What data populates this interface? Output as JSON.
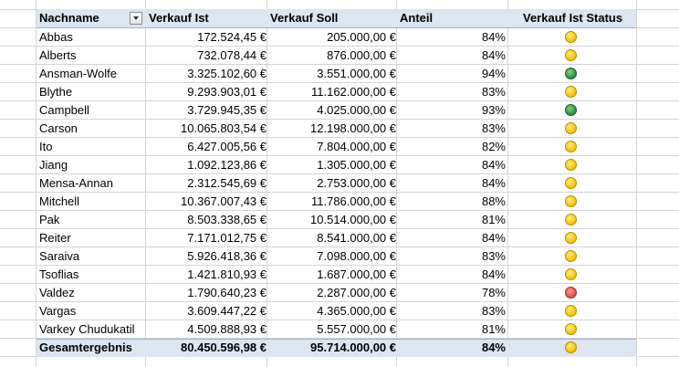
{
  "header": {
    "name": "Nachname",
    "ist": "Verkauf Ist",
    "soll": "Verkauf Soll",
    "anteil": "Anteil",
    "status": "Verkauf Ist Status"
  },
  "rows": [
    {
      "name": "Abbas",
      "ist": "172.524,45 €",
      "soll": "205.000,00 €",
      "anteil": "84%",
      "status": "yellow"
    },
    {
      "name": "Alberts",
      "ist": "732.078,44 €",
      "soll": "876.000,00 €",
      "anteil": "84%",
      "status": "yellow"
    },
    {
      "name": "Ansman-Wolfe",
      "ist": "3.325.102,60 €",
      "soll": "3.551.000,00 €",
      "anteil": "94%",
      "status": "green"
    },
    {
      "name": "Blythe",
      "ist": "9.293.903,01 €",
      "soll": "11.162.000,00 €",
      "anteil": "83%",
      "status": "yellow"
    },
    {
      "name": "Campbell",
      "ist": "3.729.945,35 €",
      "soll": "4.025.000,00 €",
      "anteil": "93%",
      "status": "green"
    },
    {
      "name": "Carson",
      "ist": "10.065.803,54 €",
      "soll": "12.198.000,00 €",
      "anteil": "83%",
      "status": "yellow"
    },
    {
      "name": "Ito",
      "ist": "6.427.005,56 €",
      "soll": "7.804.000,00 €",
      "anteil": "82%",
      "status": "yellow"
    },
    {
      "name": "Jiang",
      "ist": "1.092.123,86 €",
      "soll": "1.305.000,00 €",
      "anteil": "84%",
      "status": "yellow"
    },
    {
      "name": "Mensa-Annan",
      "ist": "2.312.545,69 €",
      "soll": "2.753.000,00 €",
      "anteil": "84%",
      "status": "yellow"
    },
    {
      "name": "Mitchell",
      "ist": "10.367.007,43 €",
      "soll": "11.786.000,00 €",
      "anteil": "88%",
      "status": "yellow"
    },
    {
      "name": "Pak",
      "ist": "8.503.338,65 €",
      "soll": "10.514.000,00 €",
      "anteil": "81%",
      "status": "yellow"
    },
    {
      "name": "Reiter",
      "ist": "7.171.012,75 €",
      "soll": "8.541.000,00 €",
      "anteil": "84%",
      "status": "yellow"
    },
    {
      "name": "Saraiva",
      "ist": "5.926.418,36 €",
      "soll": "7.098.000,00 €",
      "anteil": "83%",
      "status": "yellow"
    },
    {
      "name": "Tsoflias",
      "ist": "1.421.810,93 €",
      "soll": "1.687.000,00 €",
      "anteil": "84%",
      "status": "yellow"
    },
    {
      "name": "Valdez",
      "ist": "1.790.640,23 €",
      "soll": "2.287.000,00 €",
      "anteil": "78%",
      "status": "red"
    },
    {
      "name": "Vargas",
      "ist": "3.609.447,22 €",
      "soll": "4.365.000,00 €",
      "anteil": "83%",
      "status": "yellow"
    },
    {
      "name": "Varkey Chudukatil",
      "ist": "4.509.888,93 €",
      "soll": "5.557.000,00 €",
      "anteil": "81%",
      "status": "yellow"
    }
  ],
  "total": {
    "name": "Gesamtergebnis",
    "ist": "80.450.596,98 €",
    "soll": "95.714.000,00 €",
    "anteil": "84%",
    "status": "yellow"
  },
  "status_colors": {
    "yellow": "#f5c000",
    "green": "#2e8b3e",
    "red": "#e04a4a"
  }
}
